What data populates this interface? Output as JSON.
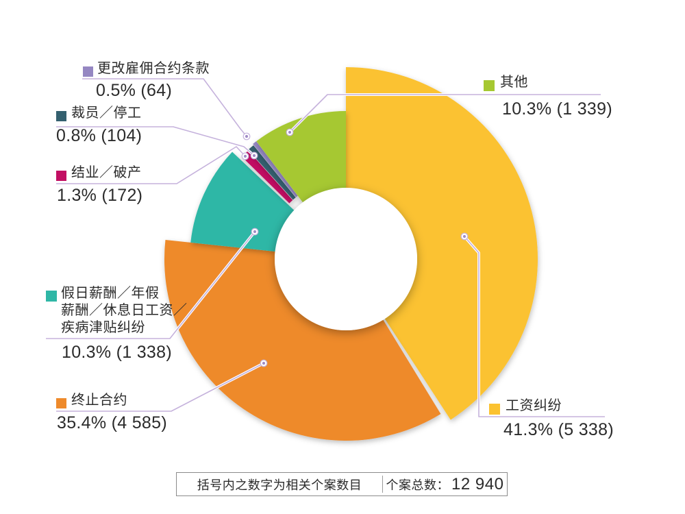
{
  "chart_data": {
    "type": "pie",
    "subtype": "donut",
    "title": "",
    "note": "括号内之数字为相关个案数目",
    "total_label": "个案总数：",
    "total_display": "12 940",
    "total_value": 12940,
    "legend_position": "around",
    "slices": [
      {
        "id": "wage",
        "label": "工资纠纷",
        "pct": 41.3,
        "count": 5338,
        "pct_display": "41.3% (5 338)",
        "color": "#FBC230"
      },
      {
        "id": "termination",
        "label": "终止合约",
        "pct": 35.4,
        "count": 4585,
        "pct_display": "35.4% (4 585)",
        "color": "#EE8A2B"
      },
      {
        "id": "holiday",
        "label": "假日薪酬／年假\n薪酬／休息日工资／\n疾病津贴纠纷",
        "pct": 10.3,
        "count": 1338,
        "pct_display": "10.3% (1 338)",
        "color": "#2FB7A6"
      },
      {
        "id": "closure",
        "label": "结业／破产",
        "pct": 1.3,
        "count": 172,
        "pct_display": "1.3% (172)",
        "color": "#C20F63"
      },
      {
        "id": "layoff",
        "label": "裁员／停工",
        "pct": 0.8,
        "count": 104,
        "pct_display": "0.8% (104)",
        "color": "#34606F"
      },
      {
        "id": "variation",
        "label": "更改雇佣合约条款",
        "pct": 0.5,
        "count": 64,
        "pct_display": "0.5% (64)",
        "color": "#9587C2"
      },
      {
        "id": "others",
        "label": "其他",
        "pct": 10.3,
        "count": 1339,
        "pct_display": "10.3% (1 339)",
        "color": "#A6C831"
      }
    ],
    "colors": {
      "leader_line": "#C5B2DC",
      "leader_dot": "#A18CC6",
      "text": "#2b2b2b",
      "box_border": "#8a8a8a"
    }
  }
}
